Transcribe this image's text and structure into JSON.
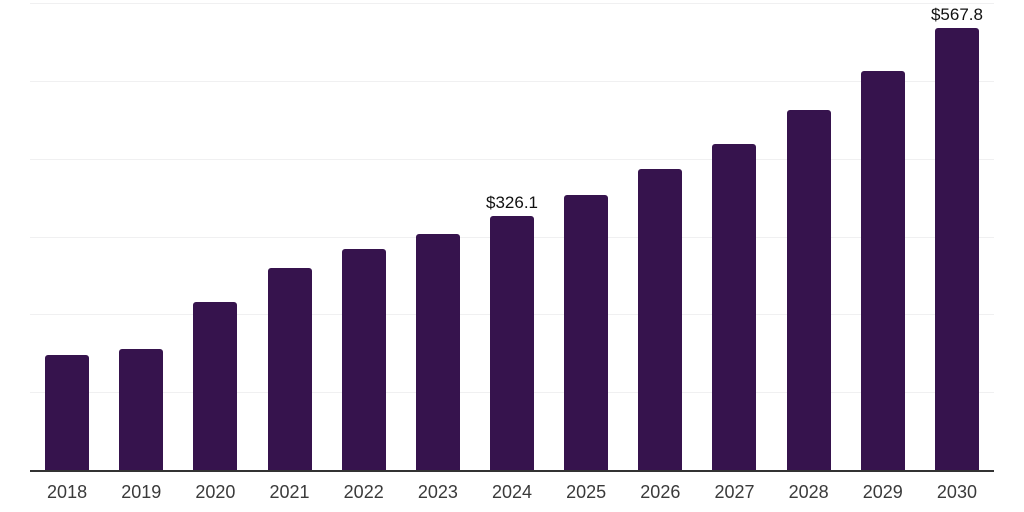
{
  "chart_data": {
    "type": "bar",
    "categories": [
      "2018",
      "2019",
      "2020",
      "2021",
      "2022",
      "2023",
      "2024",
      "2025",
      "2026",
      "2027",
      "2028",
      "2029",
      "2030"
    ],
    "values": [
      147.3,
      155.6,
      216.0,
      259.4,
      283.6,
      303.8,
      326.1,
      354.0,
      387.0,
      419.5,
      462.0,
      513.0,
      567.8
    ],
    "data_labels": {
      "2024": "$326.1",
      "2030": "$567.8"
    },
    "ylim": [
      0,
      600
    ],
    "gridline_step": 100,
    "grid": true,
    "legend_position": "none",
    "colors": {
      "bar": "#36134d",
      "axis": "#333333",
      "gridline": "#f0f0f1",
      "tick_text": "#3a3a3a",
      "label_text": "#111111"
    }
  }
}
